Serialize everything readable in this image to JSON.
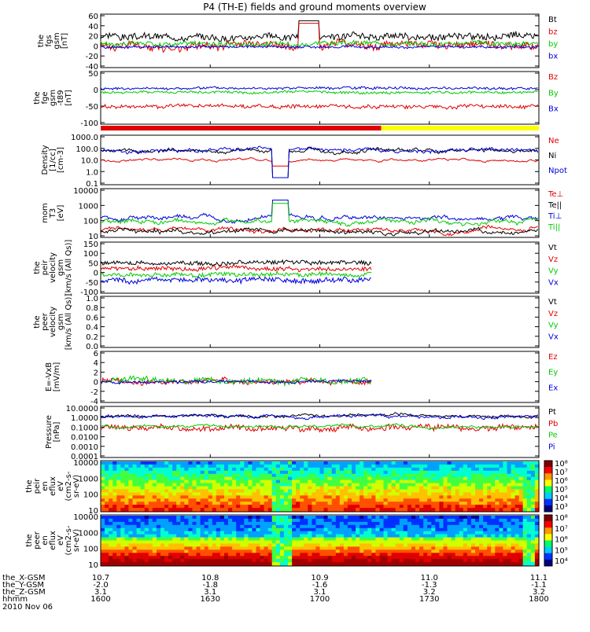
{
  "title": "P4 (TH-E) fields and ground moments overview",
  "footer": {
    "date": "2010 Nov 06",
    "row_labels": [
      "the_X-GSM",
      "the_Y-GSM",
      "the_Z-GSM",
      "hhmm"
    ],
    "columns": [
      {
        "x": "10.7",
        "y": "-2.0",
        "z": "3.1",
        "t": "1600"
      },
      {
        "x": "10.8",
        "y": "-1.8",
        "z": "3.1",
        "t": "1630"
      },
      {
        "x": "10.9",
        "y": "-1.6",
        "z": "3.1",
        "t": "1700"
      },
      {
        "x": "11.0",
        "y": "-1.3",
        "z": "3.2",
        "t": "1730"
      },
      {
        "x": "11.1",
        "y": "-1.1",
        "z": "3.2",
        "t": "1800"
      }
    ]
  },
  "colors": {
    "black": "#000000",
    "red": "#e00000",
    "green": "#00cc00",
    "blue": "#0000dd",
    "yellow": "#ffff00"
  },
  "chart_data": [
    {
      "type": "line",
      "id": "fgs",
      "ylabel": [
        "the",
        "fgs",
        "gsm",
        "[nT]"
      ],
      "yticks": [
        "60",
        "40",
        "20",
        "0",
        "-20",
        "-40"
      ],
      "ylim": [
        -40,
        60
      ],
      "series": [
        {
          "name": "Bt",
          "color": "black",
          "base": 18,
          "noise": 12,
          "dip": [
            0.45,
            0.5,
            50
          ]
        },
        {
          "name": "bz",
          "color": "red",
          "base": 0,
          "noise": 14,
          "dip": [
            0.45,
            0.5,
            45
          ]
        },
        {
          "name": "by",
          "color": "green",
          "base": 5,
          "noise": 8
        },
        {
          "name": "bx",
          "color": "blue",
          "base": -2,
          "noise": 4
        }
      ]
    },
    {
      "type": "line",
      "id": "fge",
      "ylabel": [
        "the",
        "fge",
        "gsm",
        "-t89",
        "[nT]"
      ],
      "yticks": [
        "50",
        "0",
        "-50",
        "-100"
      ],
      "ylim": [
        -120,
        60
      ],
      "series": [
        {
          "name": "Bz",
          "color": "red",
          "base": -60,
          "noise": 12
        },
        {
          "name": "By",
          "color": "green",
          "base": -10,
          "noise": 8
        },
        {
          "name": "Bx",
          "color": "blue",
          "base": 5,
          "noise": 8
        }
      ]
    },
    {
      "type": "bar",
      "id": "mode",
      "segments": [
        {
          "from": 0,
          "to": 0.64,
          "color": "red"
        },
        {
          "from": 0.64,
          "to": 1,
          "color": "yellow"
        }
      ]
    },
    {
      "type": "line",
      "id": "density",
      "ylabel": [
        "Density",
        "[1/cc]",
        "[cm-3]"
      ],
      "yticks": [
        "1000.0",
        "100.0",
        "10.0",
        "1.0",
        "0.1"
      ],
      "ylim": [
        0.1,
        1000
      ],
      "yscale": "log",
      "series": [
        {
          "name": "Ne",
          "color": "red",
          "base": 10,
          "noise": 0
        },
        {
          "name": "Ni",
          "color": "black",
          "base": 60,
          "noise": 15
        },
        {
          "name": "Npot",
          "color": "blue",
          "base": 70,
          "noise": 15
        }
      ]
    },
    {
      "type": "line",
      "id": "temp",
      "ylabel": [
        "mom",
        "T3",
        "[eV]"
      ],
      "yticks": [
        "10000",
        "1000",
        "100",
        "10"
      ],
      "ylim": [
        10,
        10000
      ],
      "yscale": "log",
      "series": [
        {
          "name": "Te⊥",
          "color": "red",
          "base": 25,
          "noise": 5
        },
        {
          "name": "Te||",
          "color": "black",
          "base": 20,
          "noise": 4
        },
        {
          "name": "Ti⊥",
          "color": "blue",
          "base": 150,
          "noise": 30
        },
        {
          "name": "Ti||",
          "color": "green",
          "base": 90,
          "noise": 20
        }
      ]
    },
    {
      "type": "line",
      "id": "peir_vel",
      "ylabel": [
        "the",
        "peir",
        "velocity",
        "gsm",
        "[km/s (All Qs)]"
      ],
      "yticks": [
        "150",
        "100",
        "50",
        "0",
        "-50",
        "-100"
      ],
      "ylim": [
        -100,
        150
      ],
      "series": [
        {
          "name": "Vt",
          "color": "black",
          "base": 50,
          "noise": 20
        },
        {
          "name": "Vz",
          "color": "red",
          "base": 20,
          "noise": 20
        },
        {
          "name": "Vy",
          "color": "green",
          "base": -10,
          "noise": 20
        },
        {
          "name": "Vx",
          "color": "blue",
          "base": -40,
          "noise": 25
        }
      ],
      "data_end": 0.62
    },
    {
      "type": "line",
      "id": "peer_vel",
      "ylabel": [
        "the",
        "peer",
        "velocity",
        "gsm",
        "[km/s (All Qs)]"
      ],
      "yticks": [
        "1.0",
        "0.8",
        "0.6",
        "0.4",
        "0.2",
        "0.0"
      ],
      "ylim": [
        0,
        1
      ],
      "series": [
        {
          "name": "Vt",
          "color": "black"
        },
        {
          "name": "Vz",
          "color": "red"
        },
        {
          "name": "Vy",
          "color": "green"
        },
        {
          "name": "Vx",
          "color": "blue"
        }
      ]
    },
    {
      "type": "line",
      "id": "efield",
      "ylabel": [
        "E=-VxB",
        "[mV/m]"
      ],
      "yticks": [
        "6",
        "4",
        "2",
        "0",
        "-2",
        "-4"
      ],
      "ylim": [
        -4,
        6
      ],
      "series": [
        {
          "name": "Ez",
          "color": "red",
          "base": 0,
          "noise": 1
        },
        {
          "name": "Ey",
          "color": "green",
          "base": 0.2,
          "noise": 1
        },
        {
          "name": "Ex",
          "color": "blue",
          "base": 0,
          "noise": 0.5
        }
      ],
      "data_end": 0.62
    },
    {
      "type": "line",
      "id": "pressure",
      "ylabel": [
        "Pressure",
        "[nPa]"
      ],
      "yticks": [
        "10.0000",
        "1.0000",
        "0.1000",
        "0.0100",
        "0.0010",
        "0.0001"
      ],
      "ylim": [
        0.0001,
        10
      ],
      "yscale": "log",
      "series": [
        {
          "name": "Pt",
          "color": "black",
          "base": 1.5,
          "noise": 0.3
        },
        {
          "name": "Pb",
          "color": "red",
          "base": 0.08,
          "noise": 0.05
        },
        {
          "name": "Pe",
          "color": "green",
          "base": 0.12,
          "noise": 0.02
        },
        {
          "name": "Pi",
          "color": "blue",
          "base": 1.3,
          "noise": 0.3
        }
      ]
    },
    {
      "type": "heatmap",
      "id": "peir_eflux",
      "ylabel": [
        "the",
        "peir",
        "en",
        "eflux",
        "eV",
        "(cm2-s-",
        "sr-eV)"
      ],
      "yticks": [
        "10000",
        "1000",
        "100",
        "10"
      ],
      "ylim": [
        10,
        30000
      ],
      "yscale": "log",
      "colorbar_ticks": [
        "10⁸",
        "10⁷",
        "10⁶",
        "10⁵",
        "10⁴",
        "10³"
      ]
    },
    {
      "type": "heatmap",
      "id": "peer_eflux",
      "ylabel": [
        "the",
        "peer",
        "en",
        "eflux",
        "eV",
        "(cm2-s-",
        "sr-eV)"
      ],
      "yticks": [
        "10000",
        "1000",
        "100",
        "10"
      ],
      "ylim": [
        8,
        20000
      ],
      "yscale": "log",
      "colorbar_ticks": [
        "10⁸",
        "10⁷",
        "10⁶",
        "10⁵",
        "10⁴"
      ]
    }
  ]
}
